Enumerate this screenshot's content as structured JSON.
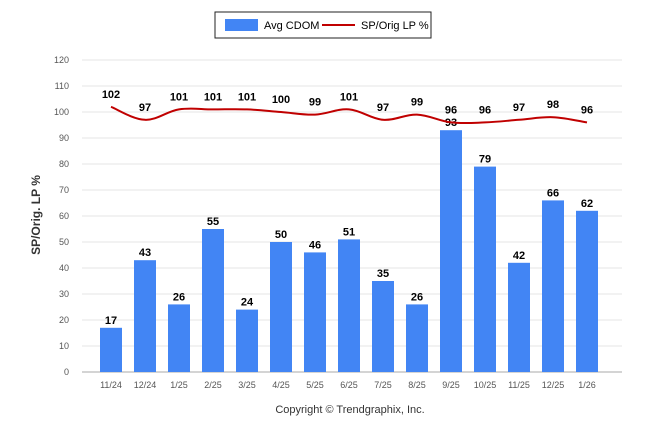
{
  "chart_data": {
    "type": "bar",
    "categories": [
      "11/24",
      "12/24",
      "1/25",
      "2/25",
      "3/25",
      "4/25",
      "5/25",
      "6/25",
      "7/25",
      "8/25",
      "9/25",
      "10/25",
      "11/25",
      "12/25",
      "1/26"
    ],
    "series": [
      {
        "name": "Avg CDOM",
        "type": "bar",
        "color": "#4285f4",
        "values": [
          17,
          43,
          26,
          55,
          24,
          50,
          46,
          51,
          35,
          26,
          93,
          79,
          42,
          66,
          62
        ]
      },
      {
        "name": "SP/Orig LP %",
        "type": "line",
        "color": "#c00000",
        "values": [
          102,
          97,
          101,
          101,
          101,
          100,
          99,
          101,
          97,
          99,
          96,
          96,
          97,
          98,
          96
        ]
      }
    ],
    "ylabel": "SP/Orig. LP %",
    "xlabel": "",
    "ylim": [
      0,
      120
    ],
    "yticks": [
      0,
      10,
      20,
      30,
      40,
      50,
      60,
      70,
      80,
      90,
      100,
      110,
      120
    ],
    "grid": true,
    "legend": "top-center"
  },
  "footer": {
    "copyright": "Copyright © Trendgraphix, Inc."
  }
}
